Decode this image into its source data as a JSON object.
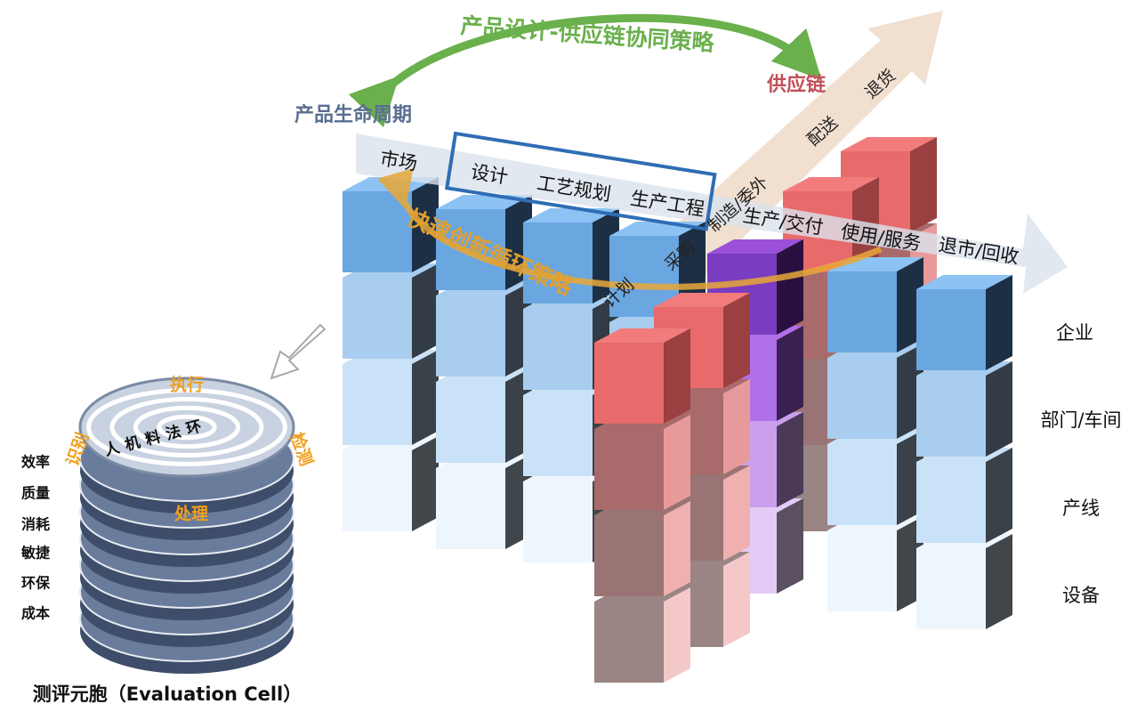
{
  "strategies": {
    "collaboration": "产品设计-供应链协同策略",
    "innovation": "快速创新循环策略"
  },
  "supply_chain": {
    "title": "供应链",
    "stages": [
      "计划",
      "采购",
      "制造/委外",
      "配送",
      "退货"
    ]
  },
  "lifecycle": {
    "title": "产品生命周期",
    "stages": [
      "市场",
      "设计",
      "工艺规划",
      "生产工程",
      "生产/交付",
      "使用/服务",
      "退市/回收"
    ]
  },
  "levels": [
    "企业",
    "部门/车间",
    "产线",
    "设备"
  ],
  "cell": {
    "title": "测评元胞（Evaluation Cell）",
    "loop": [
      "执行",
      "检测",
      "处理",
      "识别"
    ],
    "factors": [
      "人",
      "机",
      "料",
      "法",
      "环"
    ],
    "metrics": [
      "效率",
      "质量",
      "消耗",
      "敏捷",
      "环保",
      "成本"
    ]
  }
}
